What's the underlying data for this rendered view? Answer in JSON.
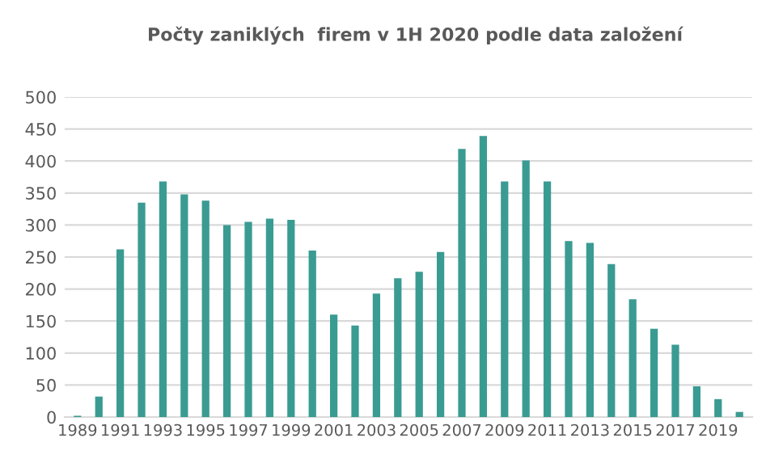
{
  "chart_data": {
    "type": "bar",
    "title": "Počty zaniklých  firem v 1H 2020 podle data založení",
    "categories": [
      "1989",
      null,
      "1991",
      null,
      "1993",
      null,
      "1995",
      null,
      "1997",
      null,
      "1999",
      null,
      "2001",
      null,
      "2003",
      null,
      "2005",
      null,
      "2007",
      null,
      "2009",
      null,
      "2011",
      null,
      "2013",
      null,
      "2015",
      null,
      "2017",
      null,
      "2019",
      null
    ],
    "values": [
      2,
      32,
      262,
      335,
      368,
      348,
      338,
      300,
      305,
      310,
      308,
      260,
      160,
      143,
      193,
      217,
      227,
      258,
      419,
      439,
      368,
      401,
      368,
      275,
      272,
      239,
      184,
      138,
      113,
      48,
      28,
      8
    ],
    "color": "#3a9b93",
    "ylim": [
      0,
      500
    ],
    "yticks": [
      0,
      50,
      100,
      150,
      200,
      250,
      300,
      350,
      400,
      450,
      500
    ],
    "grid": "y"
  }
}
